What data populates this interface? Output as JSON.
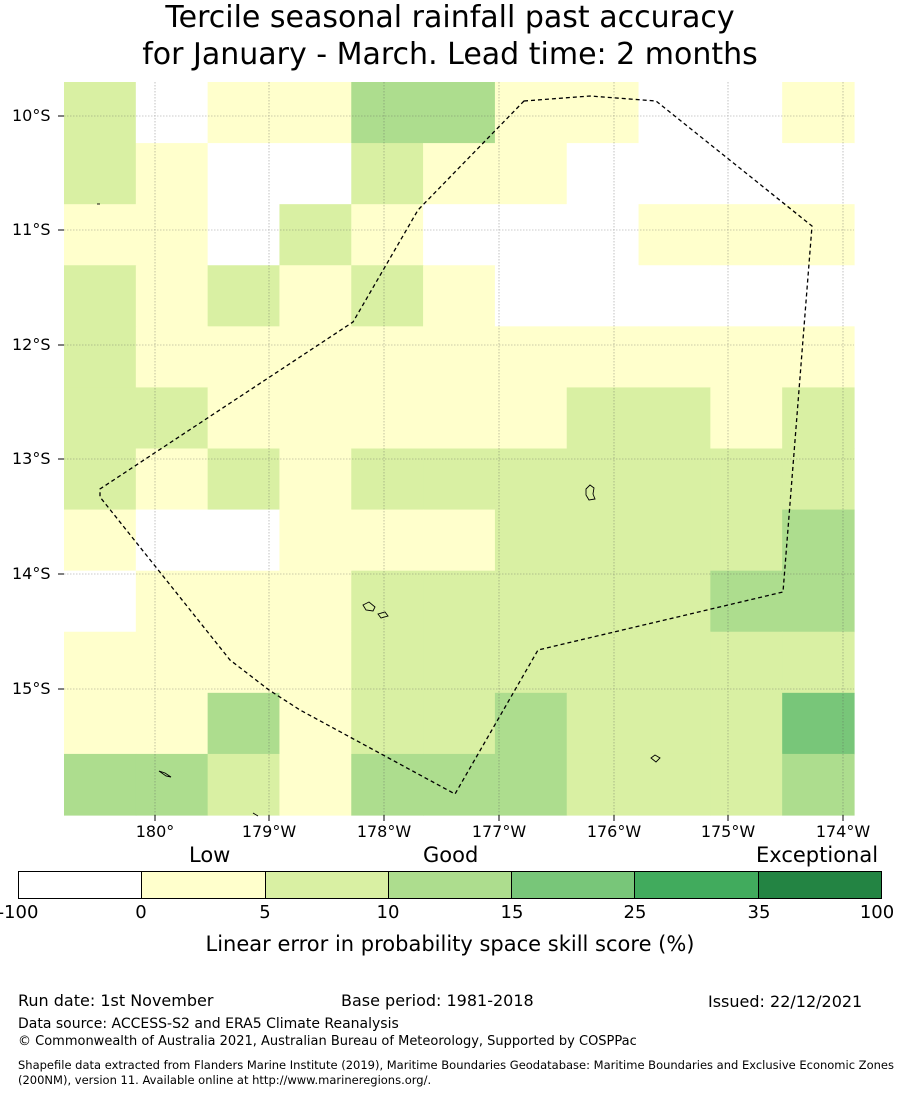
{
  "title": {
    "line1": "Tercile seasonal rainfall past accuracy",
    "line2": "for January - March. Lead time: 2 months"
  },
  "map": {
    "lat_labels": [
      "10°S",
      "11°S",
      "12°S",
      "13°S",
      "14°S",
      "15°S"
    ],
    "lon_labels": [
      "180°",
      "179°W",
      "178°W",
      "177°W",
      "176°W",
      "175°W",
      "174°W"
    ],
    "grid_categories": [
      [
        2,
        0,
        1,
        1,
        3,
        3,
        1,
        1,
        0,
        0,
        1
      ],
      [
        2,
        1,
        0,
        0,
        2,
        1,
        1,
        0,
        0,
        0,
        0
      ],
      [
        1,
        1,
        0,
        2,
        1,
        0,
        0,
        0,
        1,
        1,
        1
      ],
      [
        2,
        1,
        2,
        1,
        2,
        1,
        0,
        0,
        0,
        0,
        0
      ],
      [
        2,
        1,
        1,
        1,
        1,
        1,
        1,
        1,
        1,
        1,
        1
      ],
      [
        2,
        2,
        1,
        1,
        1,
        1,
        1,
        2,
        2,
        1,
        2
      ],
      [
        2,
        1,
        2,
        1,
        2,
        2,
        2,
        2,
        2,
        2,
        2
      ],
      [
        1,
        0,
        0,
        1,
        1,
        1,
        2,
        2,
        2,
        2,
        3
      ],
      [
        0,
        1,
        1,
        1,
        2,
        2,
        2,
        2,
        2,
        3,
        3
      ],
      [
        1,
        1,
        1,
        1,
        2,
        2,
        2,
        2,
        2,
        2,
        2
      ],
      [
        1,
        1,
        3,
        1,
        2,
        2,
        3,
        2,
        2,
        2,
        4
      ],
      [
        3,
        3,
        2,
        1,
        3,
        3,
        3,
        2,
        2,
        2,
        3
      ]
    ]
  },
  "legend": {
    "category_labels": {
      "low": "Low",
      "good": "Good",
      "exceptional": "Exceptional"
    },
    "colors": [
      "#ffffff",
      "#ffffcc",
      "#d9f0a3",
      "#addd8e",
      "#78c679",
      "#41ab5d",
      "#238443"
    ],
    "ticks": [
      "-100",
      "0",
      "5",
      "10",
      "15",
      "25",
      "35",
      "100"
    ],
    "title": "Linear error in probability space skill score (%)"
  },
  "footer": {
    "run_date": "Run date: 1st November",
    "base_period": "Base period: 1981-2018",
    "issued": "Issued: 22/12/2021",
    "data_source": "Data source: ACCESS-S2 and ERA5 Climate Reanalysis",
    "copyright": "© Commonwealth of Australia 2021, Australian Bureau of Meteorology, Supported by COSPPac",
    "shapefile": "Shapefile data extracted from Flanders Marine Institute (2019), Maritime Boundaries Geodatabase: Maritime Boundaries and Exclusive Economic Zones (200NM), version 11. Available online at http://www.marineregions.org/."
  }
}
